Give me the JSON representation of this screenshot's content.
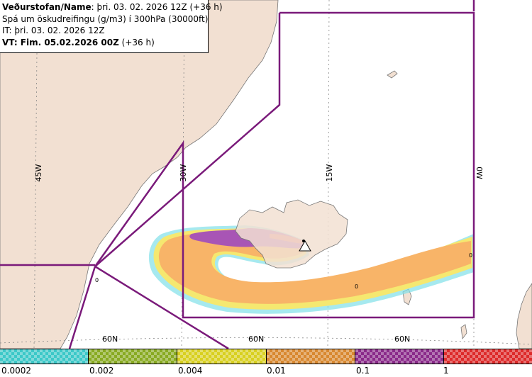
{
  "info": {
    "line1_label": "Veðurstofan/Name",
    "line1_value": ": þri. 03. 02. 2026 12Z (+36 h)",
    "line2": "Spá um öskudreifingu (g/m3) í 300hPa (30000ft)",
    "line3": "IT: þri. 03. 02. 2026 12Z",
    "line4_label": "VT: Fim. 05.02.2026 00Z",
    "line4_value": " (+36 h)"
  },
  "grid": {
    "longitudes": [
      "45W",
      "30W",
      "15W",
      "0W"
    ],
    "latitudes": [
      "60N",
      "60N",
      "60N"
    ]
  },
  "contour_labels": [
    "0",
    "0",
    "0"
  ],
  "legend": {
    "labels": [
      "0.0002",
      "0.002",
      "0.004",
      "0.01",
      "0.1",
      "1"
    ],
    "colors": [
      "#3cc8c8",
      "#88aa22",
      "#d8d020",
      "#d88830",
      "#8a2a8a",
      "#dd2a2a"
    ]
  },
  "colors": {
    "land": "#f2e0d2",
    "sea": "#ffffff",
    "boundary": "#7a1a7a",
    "plume_outer": "#f8b468",
    "plume_core": "#a855b5",
    "plume_fringe_yellow": "#f5e870",
    "plume_fringe_cyan": "#80e0e8"
  }
}
